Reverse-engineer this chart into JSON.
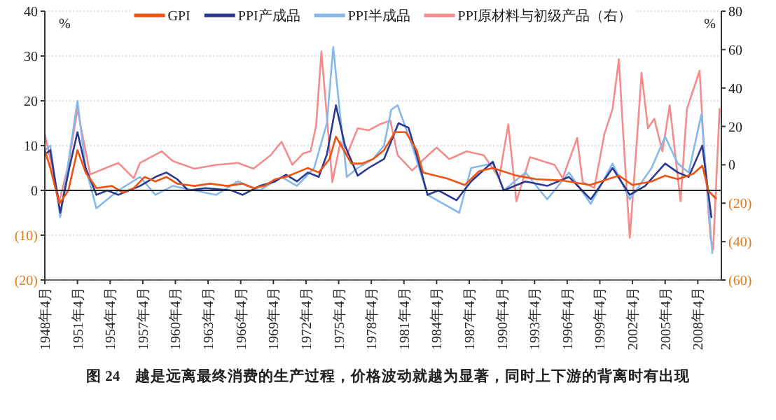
{
  "chart_data": {
    "type": "line",
    "title": "图 24　越是远离最终消费的生产过程，价格波动就越为显著，同时上下游的背离时有出现",
    "ylabel": "%",
    "y2label": "%",
    "legend": "top",
    "grid": "y",
    "xlim": [
      "1948-04",
      "2010-06"
    ],
    "xticks": [
      {
        "value": "1948-04",
        "label": "1948年4月"
      },
      {
        "value": "1951-04",
        "label": "1951年4月"
      },
      {
        "value": "1954-04",
        "label": "1954年4月"
      },
      {
        "value": "1957-04",
        "label": "1957年4月"
      },
      {
        "value": "1960-04",
        "label": "1960年4月"
      },
      {
        "value": "1963-04",
        "label": "1963年4月"
      },
      {
        "value": "1966-04",
        "label": "1966年4月"
      },
      {
        "value": "1969-04",
        "label": "1969年4月"
      },
      {
        "value": "1972-04",
        "label": "1972年4月"
      },
      {
        "value": "1975-04",
        "label": "1975年4月"
      },
      {
        "value": "1978-04",
        "label": "1978年4月"
      },
      {
        "value": "1981-04",
        "label": "1981年4月"
      },
      {
        "value": "1984-04",
        "label": "1984年4月"
      },
      {
        "value": "1987-04",
        "label": "1987年4月"
      },
      {
        "value": "1990-04",
        "label": "1990年4月"
      },
      {
        "value": "1993-04",
        "label": "1993年4月"
      },
      {
        "value": "1996-04",
        "label": "1996年4月"
      },
      {
        "value": "1999-04",
        "label": "1999年4月"
      },
      {
        "value": "2002-04",
        "label": "2002年4月"
      },
      {
        "value": "2005-04",
        "label": "2005年4月"
      },
      {
        "value": "2008-04",
        "label": "2008年4月"
      }
    ],
    "ylim": [
      -20,
      40
    ],
    "yticks": [
      {
        "value": -20,
        "label": "(20)"
      },
      {
        "value": -10,
        "label": "(10)"
      },
      0,
      10,
      20,
      30,
      40
    ],
    "y2lim": [
      -60,
      80
    ],
    "y2ticks": [
      {
        "value": -60,
        "label": "(60)"
      },
      {
        "value": -40,
        "label": "(40)"
      },
      {
        "value": -20,
        "label": "(20)"
      },
      0,
      20,
      40,
      60,
      80
    ],
    "ref_lines": [
      {
        "axis": "y",
        "value": 0,
        "color": "#222222",
        "line_style": "solid"
      }
    ],
    "series": [
      {
        "name": "PPI原材料与初级产品（右）",
        "color": "#f48c8c",
        "axis": "y2",
        "x": [
          "1948-04",
          "1949-08",
          "1950-06",
          "1951-04",
          "1952-06",
          "1955-01",
          "1956-06",
          "1957-01",
          "1959-01",
          "1960-01",
          "1962-01",
          "1964-01",
          "1966-01",
          "1967-06",
          "1969-01",
          "1970-01",
          "1971-01",
          "1972-01",
          "1972-09",
          "1973-03",
          "1973-09",
          "1974-03",
          "1974-09",
          "1975-06",
          "1976-01",
          "1977-01",
          "1978-01",
          "1979-01",
          "1980-01",
          "1980-09",
          "1982-01",
          "1983-02",
          "1984-04",
          "1985-06",
          "1987-01",
          "1988-08",
          "1990-01",
          "1990-11",
          "1991-08",
          "1992-11",
          "1995-02",
          "1995-11",
          "1997-03",
          "1997-09",
          "1998-10",
          "1999-09",
          "2000-06",
          "2001-01",
          "2001-06",
          "2002-01",
          "2002-08",
          "2003-02",
          "2003-09",
          "2004-04",
          "2005-01",
          "2005-09",
          "2006-09",
          "2007-04",
          "2008-06",
          "2008-11",
          "2009-06",
          "2009-09",
          "2010-04"
        ],
        "values": [
          16,
          -19,
          0,
          29,
          -5,
          1,
          -7,
          1,
          7,
          2,
          -2,
          0,
          1,
          -2,
          5,
          12,
          0,
          6,
          7,
          20,
          59,
          25,
          -9,
          12,
          5,
          19,
          18,
          21,
          23,
          5,
          -3,
          3,
          9,
          3,
          7,
          5,
          -7,
          21,
          -19,
          4,
          0,
          -7,
          14,
          -9,
          -12,
          16,
          29,
          55,
          14,
          -38,
          7,
          48,
          19,
          24,
          7,
          31,
          -19,
          29,
          49,
          7,
          -38,
          -44,
          29
        ]
      },
      {
        "name": "PPI半成品",
        "color": "#86b8ea",
        "axis": "y",
        "x": [
          "1948-04",
          "1948-10",
          "1949-09",
          "1951-04",
          "1952-01",
          "1953-01",
          "1955-01",
          "1957-01",
          "1958-06",
          "1960-01",
          "1962-01",
          "1964-01",
          "1966-01",
          "1968-01",
          "1970-01",
          "1971-06",
          "1973-01",
          "1974-03",
          "1974-10",
          "1975-04",
          "1976-01",
          "1977-01",
          "1978-06",
          "1979-06",
          "1980-02",
          "1980-09",
          "1982-01",
          "1983-06",
          "1986-05",
          "1987-06",
          "1989-06",
          "1990-06",
          "1992-06",
          "1994-06",
          "1996-06",
          "1998-06",
          "2000-06",
          "2002-01",
          "2004-01",
          "2005-04",
          "2006-06",
          "2007-06",
          "2008-08",
          "2009-08"
        ],
        "values": [
          9,
          10,
          -6,
          20,
          5,
          -4,
          0,
          3,
          -1,
          1,
          0,
          -1,
          2,
          0,
          3,
          1,
          5,
          15,
          32,
          20,
          3,
          5,
          7,
          10,
          18,
          19,
          10,
          -1,
          -5,
          5,
          6,
          0,
          4,
          -2,
          4,
          -3,
          6,
          -2,
          5,
          12,
          6,
          4,
          17,
          -14
        ]
      },
      {
        "name": "PPI产成品",
        "color": "#2b3990",
        "axis": "y",
        "x": [
          "1948-04",
          "1948-10",
          "1949-09",
          "1950-07",
          "1951-04",
          "1952-01",
          "1953-01",
          "1954-01",
          "1955-01",
          "1957-01",
          "1958-06",
          "1959-06",
          "1960-06",
          "1961-06",
          "1963-01",
          "1965-06",
          "1966-06",
          "1968-01",
          "1969-06",
          "1970-06",
          "1971-06",
          "1972-06",
          "1973-06",
          "1974-03",
          "1975-01",
          "1975-11",
          "1977-01",
          "1978-01",
          "1979-06",
          "1980-10",
          "1981-09",
          "1982-06",
          "1983-06",
          "1984-06",
          "1986-02",
          "1987-06",
          "1989-06",
          "1990-06",
          "1992-06",
          "1994-06",
          "1996-06",
          "1998-06",
          "2000-06",
          "2002-01",
          "2003-06",
          "2005-04",
          "2006-06",
          "2007-06",
          "2008-09",
          "2009-07"
        ],
        "values": [
          8,
          9,
          -5,
          5,
          13,
          5,
          -1,
          0,
          -1,
          1,
          3,
          4,
          2.5,
          0,
          0.5,
          0,
          -1,
          1,
          2,
          3.5,
          2,
          4,
          3,
          8,
          19,
          10,
          3.3,
          5,
          7,
          15,
          14,
          8,
          -1,
          0,
          -2.2,
          2,
          6.4,
          0,
          2,
          1,
          3,
          -2,
          5,
          -1,
          1,
          6,
          4,
          3,
          10,
          -6
        ]
      },
      {
        "name": "GPI",
        "color": "#f0520f",
        "axis": "y",
        "x": [
          "1948-04",
          "1948-10",
          "1949-08",
          "1950-06",
          "1951-04",
          "1952-01",
          "1953-01",
          "1954-06",
          "1955-06",
          "1956-06",
          "1957-06",
          "1958-06",
          "1959-06",
          "1960-06",
          "1962-01",
          "1963-06",
          "1965-01",
          "1966-06",
          "1967-06",
          "1968-06",
          "1969-06",
          "1970-06",
          "1971-06",
          "1972-06",
          "1973-06",
          "1974-06",
          "1975-01",
          "1976-06",
          "1977-06",
          "1978-06",
          "1979-06",
          "1980-06",
          "1981-06",
          "1982-06",
          "1983-01",
          "1985-03",
          "1986-11",
          "1988-03",
          "1989-06",
          "1991-08",
          "1993-06",
          "1995-11",
          "1998-05",
          "2001-01",
          "2002-04",
          "2004-01",
          "2005-04",
          "2006-06",
          "2007-11",
          "2008-09",
          "2009-04",
          "2009-12"
        ],
        "values": [
          9,
          5,
          -3,
          0,
          9,
          4,
          0.5,
          1,
          -0.5,
          0.5,
          3,
          2,
          3,
          1.5,
          1,
          1.5,
          1,
          1.5,
          0.5,
          1,
          2.5,
          3,
          4,
          5,
          4,
          7,
          12,
          6,
          6,
          7,
          9,
          13,
          13,
          9,
          4,
          2.7,
          1.2,
          4.3,
          5,
          3.3,
          2.5,
          2.2,
          1.2,
          3.3,
          1.2,
          2,
          3.3,
          2.5,
          3.7,
          5.5,
          -0.2,
          -1.8
        ]
      }
    ]
  }
}
